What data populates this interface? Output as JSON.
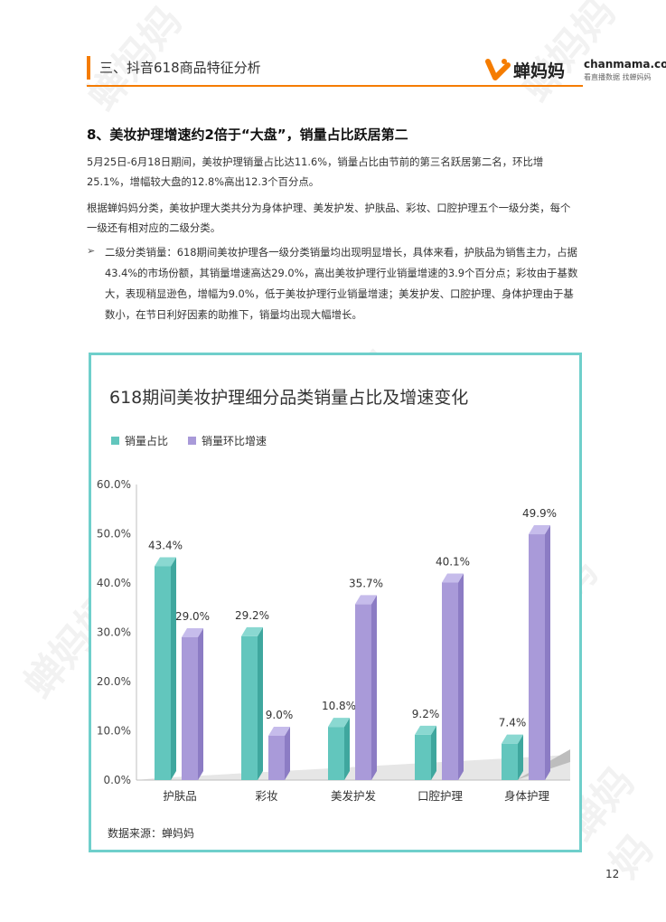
{
  "header": {
    "title": "三、抖音618商品特征分析",
    "logo_cn": "蝉妈妈",
    "logo_en": "chanmama.com",
    "logo_tagline": "看直播数据 找蝉妈妈",
    "accent_color": "#f57c00"
  },
  "watermark": "蝉妈妈",
  "section": {
    "title": "8、美妆护理增速约2倍于“大盘”，销量占比跃居第二",
    "para1": "5月25日-6月18日期间，美妆护理销量占比达11.6%，销量占比由节前的第三名跃居第二名，环比增25.1%，增幅较大盘的12.8%高出12.3个百分点。",
    "para2": "根据蝉妈妈分类，美妆护理大类共分为身体护理、美发护发、护肤品、彩妆、口腔护理五个一级分类，每个一级还有相对应的二级分类。",
    "bullet_mark": "➢",
    "bullet": "二级分类销量：618期间美妆护理各一级分类销量均出现明显增长，具体来看，护肤品为销售主力，占据43.4%的市场份额，其销量增速高达29.0%，高出美妆护理行业销量增速的3.9个百分点；彩妆由于基数大，表现稍显逊色，增幅为9.0%，低于美妆护理行业销量增速；美发护发、口腔护理、身体护理由于基数小，在节日利好因素的助推下，销量均出现大幅增长。"
  },
  "chart_data": {
    "type": "bar",
    "title": "618期间美妆护理细分品类销量占比及增速变化",
    "categories": [
      "护肤品",
      "彩妆",
      "美发护发",
      "口腔护理",
      "身体护理"
    ],
    "series": [
      {
        "name": "销量占比",
        "values": [
          43.4,
          29.2,
          10.8,
          9.2,
          7.4
        ],
        "labels": [
          "43.4%",
          "29.2%",
          "10.8%",
          "9.2%",
          "7.4%"
        ],
        "color": "#62c6bd"
      },
      {
        "name": "销量环比增速",
        "values": [
          29.0,
          9.0,
          35.7,
          40.1,
          49.9
        ],
        "labels": [
          "29.0%",
          "9.0%",
          "35.7%",
          "40.1%",
          "49.9%"
        ],
        "color": "#a99ad9"
      }
    ],
    "ylim": [
      0,
      60
    ],
    "yticks": [
      "0.0%",
      "10.0%",
      "20.0%",
      "30.0%",
      "40.0%",
      "50.0%",
      "60.0%"
    ],
    "legend_position": "top-left",
    "grid": false,
    "style": "3d",
    "border_color": "#6fcfcb",
    "source": "数据来源：蝉妈妈"
  },
  "page_number": "12"
}
